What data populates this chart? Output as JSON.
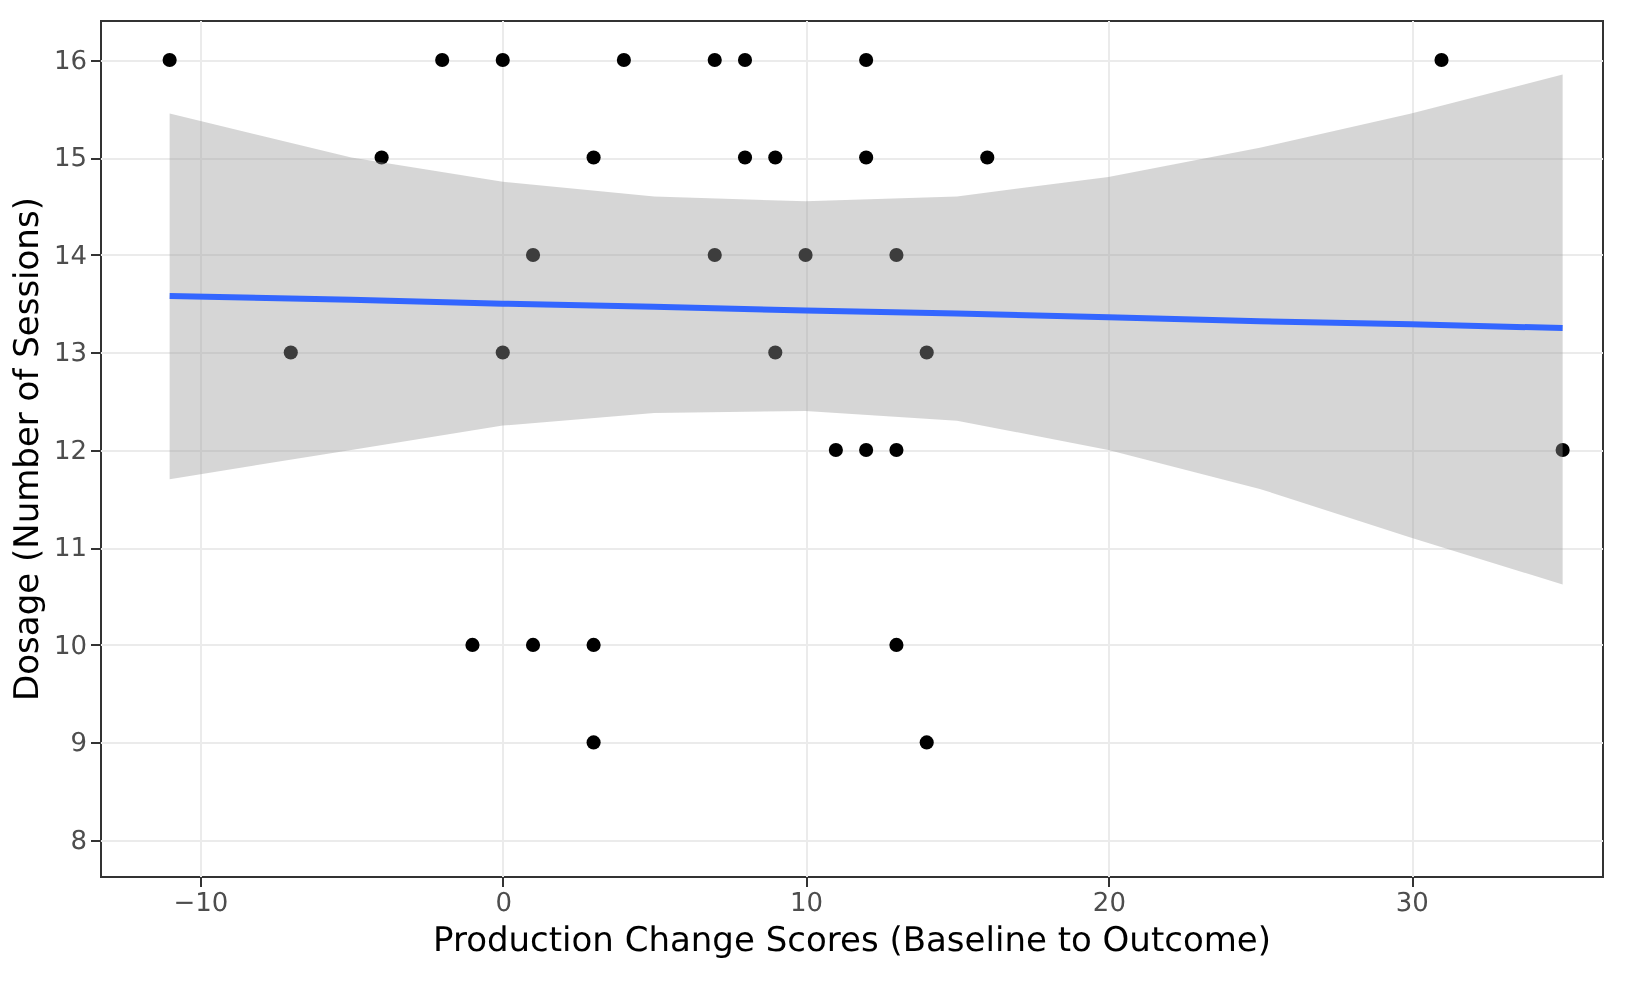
{
  "chart_data": {
    "type": "scatter",
    "xlabel": "Production Change Scores (Baseline to Outcome)",
    "ylabel": "Dosage (Number of Sessions)",
    "xlim": [
      -13.3,
      36.3
    ],
    "ylim": [
      7.63,
      16.41
    ],
    "xticks": [
      -10,
      0,
      10,
      20,
      30
    ],
    "yticks": [
      8,
      9,
      10,
      11,
      12,
      13,
      14,
      15,
      16
    ],
    "grid": true,
    "series": [
      {
        "color": "#000000",
        "marker": "circle",
        "x": [
          -11,
          -2,
          0,
          4,
          7,
          8,
          12,
          31,
          -4,
          3,
          8,
          9,
          12,
          16,
          1,
          7,
          10,
          13,
          -7,
          0,
          9,
          14,
          11,
          12,
          13,
          35,
          -1,
          1,
          3,
          13,
          3,
          14
        ],
        "values": [
          16,
          16,
          16,
          16,
          16,
          16,
          16,
          16,
          15,
          15,
          15,
          15,
          15,
          15,
          14,
          14,
          14,
          14,
          13,
          13,
          13,
          13,
          12,
          12,
          12,
          12,
          10,
          10,
          10,
          10,
          9,
          9
        ]
      },
      {
        "type": "line",
        "color": "#3366ff",
        "x": [
          -11,
          -5,
          0,
          5,
          10,
          15,
          20,
          25,
          30,
          35
        ],
        "values": [
          13.58,
          13.54,
          13.5,
          13.47,
          13.43,
          13.4,
          13.36,
          13.32,
          13.29,
          13.25
        ],
        "lower": [
          11.7,
          12.0,
          12.25,
          12.38,
          12.4,
          12.3,
          12.0,
          11.6,
          11.1,
          10.62
        ],
        "upper": [
          15.45,
          15.0,
          14.75,
          14.6,
          14.55,
          14.6,
          14.8,
          15.1,
          15.45,
          15.85
        ]
      }
    ]
  }
}
